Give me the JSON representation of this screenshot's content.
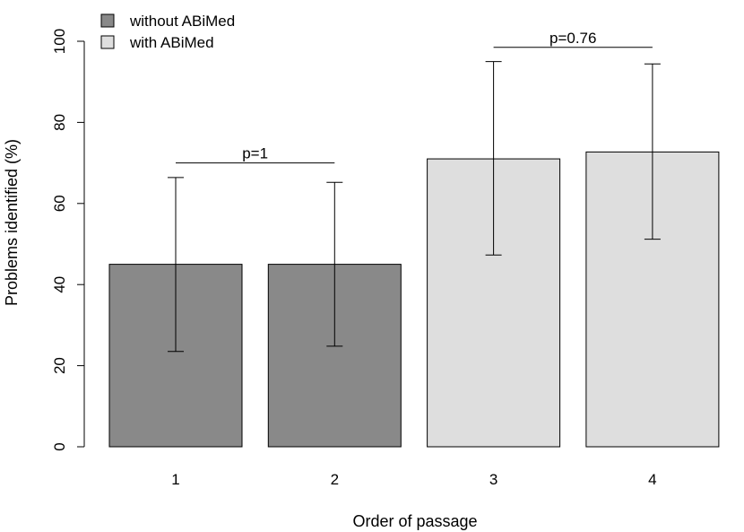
{
  "chart_data": {
    "type": "bar",
    "xlabel": "Order of passage",
    "ylabel": "Problems identified (%)",
    "ylim": [
      0,
      100
    ],
    "yticks": [
      0,
      20,
      40,
      60,
      80,
      100
    ],
    "categories": [
      "1",
      "2",
      "3",
      "4"
    ],
    "values": [
      45,
      45,
      71,
      72.7
    ],
    "error_low": [
      23.5,
      24.8,
      47.3,
      51.2
    ],
    "error_high": [
      66.4,
      65.2,
      95,
      94.4
    ],
    "groups": [
      "without ABiMed",
      "without ABiMed",
      "with ABiMed",
      "with ABiMed"
    ],
    "group_colors": {
      "without ABiMed": "#898989",
      "with ABiMed": "#dedede"
    },
    "legend": {
      "position": "top-left",
      "entries": [
        "without ABiMed",
        "with ABiMed"
      ]
    },
    "comparisons": [
      {
        "from": "1",
        "to": "2",
        "label": "p=1",
        "y": 70
      },
      {
        "from": "3",
        "to": "4",
        "label": "p=0.76",
        "y": 98.5
      }
    ]
  }
}
